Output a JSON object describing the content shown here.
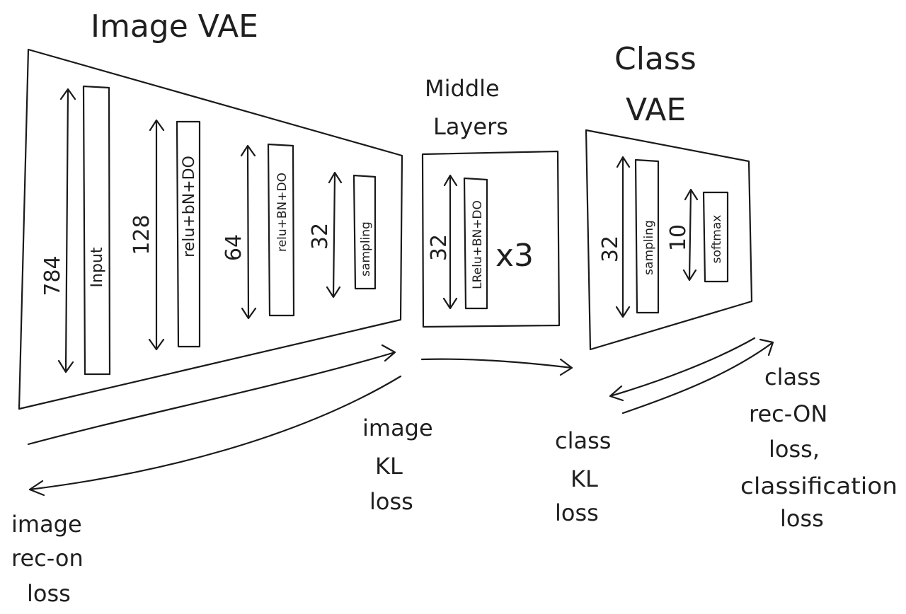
{
  "sections": {
    "image_vae": {
      "title": "Image VAE"
    },
    "middle": {
      "title_line1": "Middle",
      "title_line2": "Layers",
      "repeat": "x3"
    },
    "class_vae": {
      "title_line1": "Class",
      "title_line2": "VAE"
    }
  },
  "image_vae_layers": [
    {
      "size": "784",
      "label": "Input"
    },
    {
      "size": "128",
      "label": "relu+bN+DO"
    },
    {
      "size": "64",
      "label": "relu+BN+DO"
    },
    {
      "size": "32",
      "label": "sampling"
    }
  ],
  "middle_layer": {
    "size": "32",
    "label": "LRelu+BN+DO"
  },
  "class_vae_layers": [
    {
      "size": "32",
      "label": "sampling"
    },
    {
      "size": "10",
      "label": "softmax"
    }
  ],
  "losses": {
    "image_rec": [
      "image",
      "rec-on",
      "loss"
    ],
    "image_kl": [
      "image",
      "KL",
      "loss"
    ],
    "class_kl": [
      "class",
      "KL",
      "loss"
    ],
    "class_rec": [
      "class",
      "rec-ON",
      "loss,",
      "classification",
      "loss"
    ]
  }
}
